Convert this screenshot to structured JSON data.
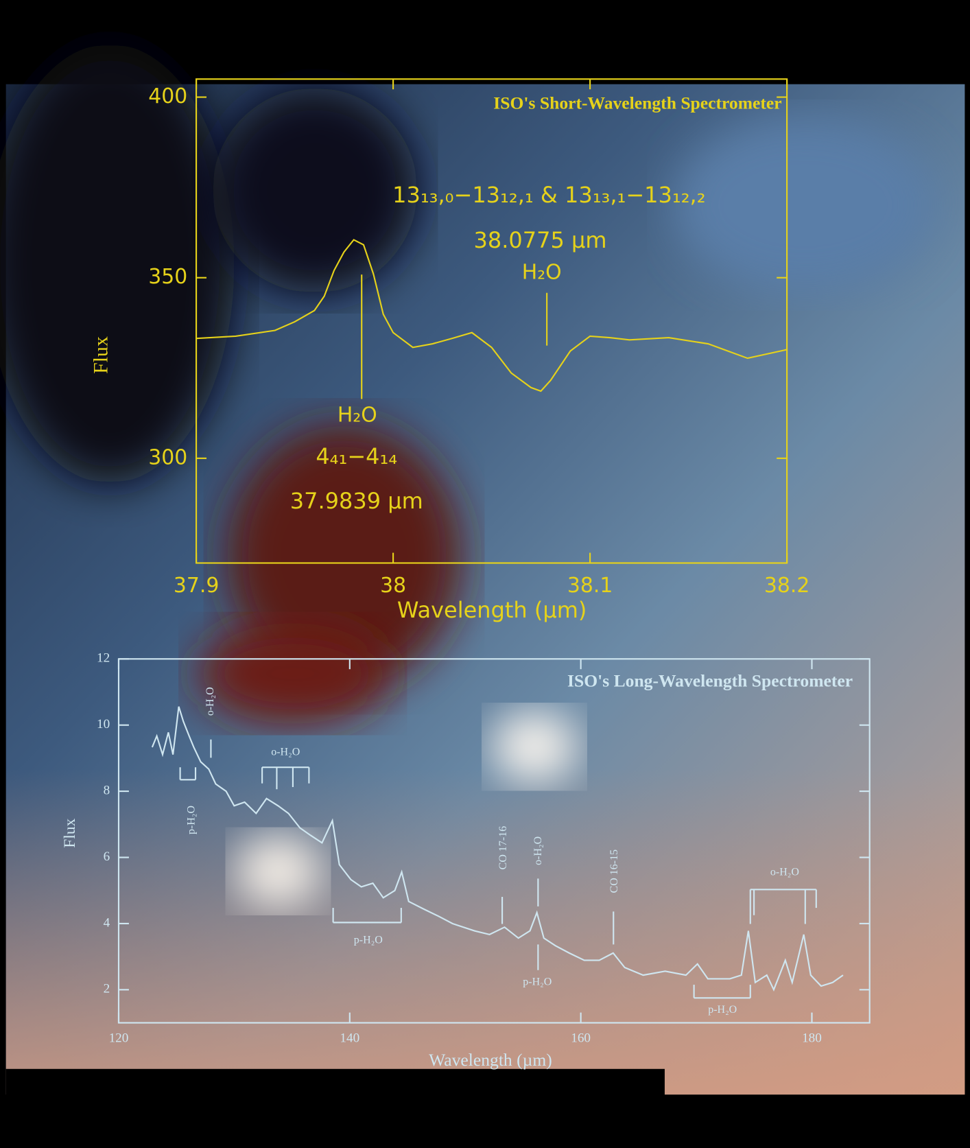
{
  "chart_data": [
    {
      "type": "line",
      "title": "ISO's Short-Wavelength Spectrometer",
      "x_label": "Wavelength (μm)",
      "y_label": "Flux",
      "color": "#e6d21a",
      "x": [
        37.9,
        37.92,
        37.94,
        37.95,
        37.96,
        37.965,
        37.97,
        37.975,
        37.98,
        37.985,
        37.99,
        37.995,
        38.0,
        38.01,
        38.02,
        38.03,
        38.04,
        38.05,
        38.06,
        38.07,
        38.075,
        38.08,
        38.09,
        38.1,
        38.11,
        38.12,
        38.14,
        38.16,
        38.18,
        38.2
      ],
      "values": [
        333.2,
        333.8,
        335.4,
        337.8,
        340.9,
        344.9,
        352.0,
        357.1,
        360.5,
        359.1,
        351.0,
        339.9,
        334.8,
        330.7,
        331.7,
        333.2,
        334.8,
        330.7,
        323.6,
        319.6,
        318.6,
        321.6,
        329.7,
        333.8,
        333.4,
        332.8,
        333.4,
        331.7,
        327.7,
        330.1
      ],
      "xlim": [
        37.9,
        38.2
      ],
      "ylim": [
        271,
        405
      ],
      "xticks": [
        37.9,
        38,
        38.1,
        38.2
      ],
      "yticks": [
        300,
        350,
        400
      ],
      "annotations": [
        "13₁₃,₀−13₁₂,₁ & 13₁₃,₁−13₁₂,₂",
        "38.0775 μm",
        "H₂O",
        "H₂O",
        "4₄₁−4₁₄",
        "37.9839 μm"
      ]
    },
    {
      "type": "line",
      "title": "ISO's Long-Wavelength Spectrometer",
      "x_label": "Wavelength (µm)",
      "y_label": "Flux",
      "color": "#cfe6f0",
      "x": [
        122.9,
        123.3,
        123.8,
        124.3,
        124.7,
        125.2,
        125.6,
        126.1,
        126.5,
        127.1,
        127.8,
        128.4,
        129.3,
        130.0,
        130.9,
        131.9,
        132.8,
        133.8,
        134.7,
        135.7,
        136.6,
        137.6,
        138.5,
        139.1,
        140.1,
        141.0,
        142.0,
        142.9,
        143.9,
        144.5,
        145.1,
        146.4,
        147.7,
        148.9,
        150.8,
        152.1,
        153.4,
        154.6,
        155.6,
        156.2,
        156.8,
        157.8,
        159.0,
        160.3,
        161.6,
        162.8,
        163.8,
        165.4,
        167.3,
        169.1,
        170.1,
        171.0,
        172.9,
        173.9,
        174.5,
        175.1,
        176.1,
        176.7,
        177.7,
        178.3,
        179.3,
        179.9,
        180.8,
        181.8,
        182.7
      ],
      "values": [
        9.33,
        9.67,
        9.11,
        9.78,
        9.11,
        10.56,
        10.11,
        9.67,
        9.33,
        8.89,
        8.67,
        8.22,
        8.0,
        7.56,
        7.67,
        7.33,
        7.78,
        7.56,
        7.33,
        6.89,
        6.67,
        6.44,
        7.11,
        5.78,
        5.33,
        5.11,
        5.22,
        4.78,
        5.0,
        5.56,
        4.67,
        4.44,
        4.22,
        4.0,
        3.78,
        3.67,
        3.89,
        3.56,
        3.78,
        4.33,
        3.56,
        3.33,
        3.11,
        2.89,
        2.89,
        3.11,
        2.67,
        2.44,
        2.56,
        2.44,
        2.78,
        2.33,
        2.33,
        2.44,
        3.78,
        2.22,
        2.44,
        2.0,
        2.89,
        2.22,
        3.67,
        2.44,
        2.11,
        2.22,
        2.44
      ],
      "xlim": [
        120,
        185
      ],
      "ylim": [
        1,
        12
      ],
      "xticks": [
        120,
        140,
        160,
        180
      ],
      "yticks": [
        2,
        4,
        6,
        8,
        10,
        12
      ],
      "annotations": [
        "o-H₂O",
        "p-H₂O",
        "o-H₂O",
        "p-H₂O",
        "CO 17-16",
        "o-H₂O",
        "p-H₂O",
        "CO 16-15",
        "o-H₂O",
        "p-H₂O"
      ]
    }
  ]
}
